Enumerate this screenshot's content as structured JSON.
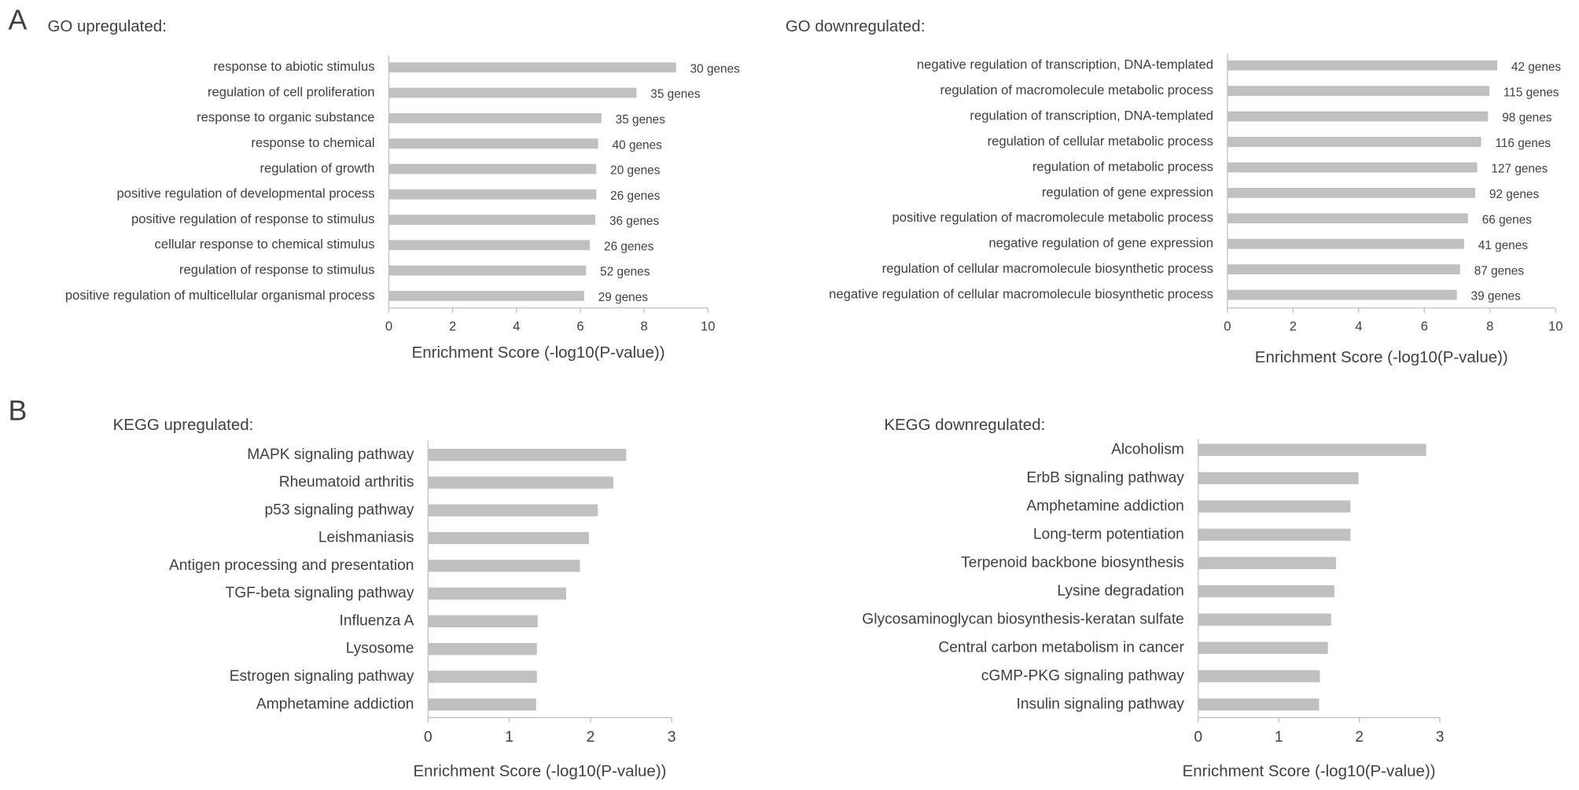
{
  "chart_data": [
    {
      "type": "hbar",
      "panel": "A",
      "title": "GO upregulated:",
      "xlabel": "Enrichment Score (-log10(P-value))",
      "color": "#c0c0c0",
      "categories": [
        "response to abiotic stimulus",
        "regulation of cell proliferation",
        "response to organic substance",
        "response to chemical",
        "regulation of growth",
        "positive regulation of developmental process",
        "positive regulation of response to stimulus",
        "cellular response to chemical stimulus",
        "regulation of response to stimulus",
        "positive regulation of multicellular organismal process"
      ],
      "values": [
        9.0,
        7.76,
        6.66,
        6.56,
        6.5,
        6.5,
        6.47,
        6.3,
        6.18,
        6.12
      ],
      "bar_annotations": [
        "30 genes",
        "35 genes",
        "35 genes",
        "40 genes",
        "20 genes",
        "26 genes",
        "36 genes",
        "26 genes",
        "52 genes",
        "29 genes"
      ],
      "xlim": [
        0,
        10
      ],
      "xticks": [
        0,
        2,
        4,
        6,
        8,
        10
      ]
    },
    {
      "type": "hbar",
      "title": "GO downregulated:",
      "xlabel": "Enrichment Score (-log10(P-value))",
      "color": "#c0c0c0",
      "categories": [
        "negative regulation of transcription, DNA-templated",
        "regulation of macromolecule metabolic process",
        "regulation of transcription, DNA-templated",
        "regulation of cellular metabolic process",
        "regulation of metabolic process",
        "regulation of gene expression",
        "positive regulation of macromolecule metabolic process",
        "negative regulation of gene expression",
        "regulation of cellular macromolecule biosynthetic process",
        "negative regulation of cellular macromolecule biosynthetic process"
      ],
      "values": [
        8.22,
        7.98,
        7.94,
        7.73,
        7.61,
        7.55,
        7.33,
        7.21,
        7.09,
        6.99
      ],
      "bar_annotations": [
        "42 genes",
        "115 genes",
        "98 genes",
        "116 genes",
        "127 genes",
        "92 genes",
        "66 genes",
        "41 genes",
        "87 genes",
        "39 genes"
      ],
      "xlim": [
        0,
        10
      ],
      "xticks": [
        0,
        2,
        4,
        6,
        8,
        10
      ]
    },
    {
      "type": "hbar",
      "panel": "B",
      "title": "KEGG upregulated:",
      "xlabel": "Enrichment Score (-log10(P-value))",
      "color": "#c0c0c0",
      "categories": [
        "MAPK signaling pathway",
        "Rheumatoid arthritis",
        "p53 signaling pathway",
        "Leishmaniasis",
        "Antigen processing and presentation",
        "TGF-beta signaling pathway",
        "Influenza A",
        "Lysosome",
        "Estrogen signaling pathway",
        "Amphetamine addiction"
      ],
      "values": [
        2.44,
        2.28,
        2.09,
        1.98,
        1.87,
        1.7,
        1.35,
        1.34,
        1.34,
        1.33
      ],
      "xlim": [
        0,
        3
      ],
      "xticks": [
        0,
        1,
        2,
        3
      ]
    },
    {
      "type": "hbar",
      "title": "KEGG downregulated:",
      "xlabel": "Enrichment Score (-log10(P-value))",
      "color": "#c0c0c0",
      "categories": [
        "Alcoholism",
        "ErbB signaling pathway",
        "Amphetamine addiction",
        "Long-term potentiation",
        "Terpenoid backbone biosynthesis",
        "Lysine degradation",
        "Glycosaminoglycan biosynthesis-keratan sulfate",
        "Central carbon metabolism in cancer",
        "cGMP-PKG signaling pathway",
        "Insulin signaling pathway"
      ],
      "values": [
        2.83,
        1.99,
        1.89,
        1.89,
        1.71,
        1.69,
        1.65,
        1.61,
        1.51,
        1.5
      ],
      "xlim": [
        0,
        3
      ],
      "xticks": [
        0,
        1,
        2,
        3
      ]
    }
  ]
}
